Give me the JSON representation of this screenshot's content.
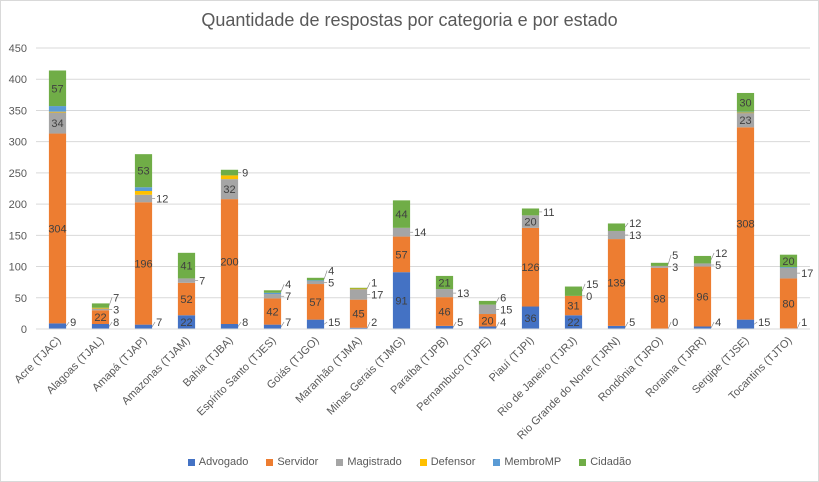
{
  "chart_data": {
    "type": "bar",
    "stacked": true,
    "title": "Quantidade de respostas por categoria e por estado",
    "xlabel": "",
    "ylabel": "",
    "ylim": [
      0,
      450
    ],
    "yticks": [
      0,
      50,
      100,
      150,
      200,
      250,
      300,
      350,
      400,
      450
    ],
    "grid": true,
    "legend_position": "bottom",
    "categories": [
      "Acre (TJAC)",
      "Alagoas (TJAL)",
      "Amapá (TJAP)",
      "Amazonas (TJAM)",
      "Bahia (TJBA)",
      "Espírito Santo (TJES)",
      "Goiás (TJGO)",
      "Maranhão (TJMA)",
      "Minas Gerais (TJMG)",
      "Paraíba (TJPB)",
      "Pernambuco (TJPE)",
      "Piauí (TJPI)",
      "Rio de Janeiro (TJRJ)",
      "Rio Grande do Norte (TJRN)",
      "Rondônia (TJRO)",
      "Roraima (TJRR)",
      "Sergipe (TJSE)",
      "Tocantins (TJTO)"
    ],
    "series": [
      {
        "name": "Advogado",
        "color": "#4472c4",
        "values": [
          9,
          8,
          7,
          22,
          8,
          7,
          15,
          2,
          91,
          5,
          4,
          36,
          22,
          5,
          0,
          4,
          15,
          1
        ],
        "labels": [
          "9",
          "8",
          "7",
          "22",
          "8",
          "7",
          "15",
          "2",
          "91",
          "5",
          "4",
          "36",
          "22",
          "5",
          "0",
          "4",
          "15",
          "1"
        ]
      },
      {
        "name": "Servidor",
        "color": "#ed7d31",
        "values": [
          304,
          22,
          196,
          52,
          200,
          42,
          57,
          45,
          57,
          46,
          20,
          126,
          31,
          139,
          98,
          96,
          308,
          80
        ],
        "labels": [
          "304",
          "22",
          "196",
          "52",
          "200",
          "42",
          "57",
          "45",
          "57",
          "46",
          "20",
          "126",
          "31",
          "139",
          "98",
          "96",
          "308",
          "80"
        ]
      },
      {
        "name": "Magistrado",
        "color": "#a5a5a5",
        "values": [
          34,
          3,
          12,
          7,
          32,
          7,
          5,
          17,
          14,
          13,
          15,
          20,
          0,
          13,
          3,
          5,
          23,
          17
        ],
        "labels": [
          "34",
          "3",
          "12",
          "7",
          "32",
          "7",
          "5",
          "17",
          "14",
          "13",
          "15",
          "20",
          "0",
          "13",
          "3",
          "5",
          "23",
          "17"
        ]
      },
      {
        "name": "Defensor",
        "color": "#ffc000",
        "values": [
          1,
          1,
          6,
          0,
          6,
          0,
          0,
          1,
          0,
          0,
          0,
          0,
          0,
          0,
          0,
          0,
          1,
          0
        ],
        "labels": [
          "",
          "",
          "",
          "",
          "",
          "",
          "",
          "1",
          "",
          "",
          "",
          "",
          "",
          "",
          "",
          "",
          "",
          ""
        ]
      },
      {
        "name": "MembroMP",
        "color": "#5b9bd5",
        "values": [
          9,
          0,
          6,
          0,
          0,
          2,
          1,
          0,
          0,
          0,
          0,
          0,
          0,
          0,
          0,
          0,
          1,
          1
        ],
        "labels": [
          "",
          "",
          "",
          "",
          "",
          "",
          "",
          "",
          "",
          "",
          "",
          "",
          "",
          "",
          "",
          "",
          "",
          ""
        ]
      },
      {
        "name": "Cidadão",
        "color": "#70ad47",
        "values": [
          57,
          7,
          53,
          41,
          9,
          4,
          4,
          1,
          44,
          21,
          6,
          11,
          15,
          12,
          5,
          12,
          30,
          20
        ],
        "labels": [
          "57",
          "7",
          "53",
          "41",
          "9",
          "4",
          "4",
          "",
          "44",
          "21",
          "6",
          "11",
          "15",
          "12",
          "5",
          "12",
          "30",
          "20"
        ]
      }
    ]
  }
}
